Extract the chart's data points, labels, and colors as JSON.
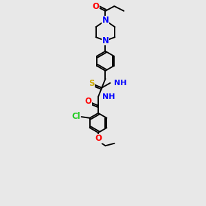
{
  "background_color": "#e8e8e8",
  "atom_colors": {
    "O": "#ff0000",
    "N": "#0000ff",
    "S": "#ccaa00",
    "Cl": "#22cc22",
    "C": "#000000",
    "H": "#008080"
  },
  "bond_color": "#000000",
  "bond_width": 1.4,
  "font_size_atoms": 8.5
}
